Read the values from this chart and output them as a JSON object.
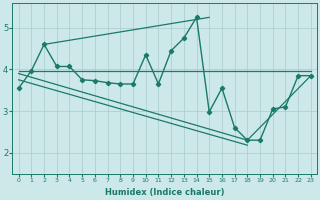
{
  "xlabel": "Humidex (Indice chaleur)",
  "bg_color": "#cce8e8",
  "grid_color": "#aacccc",
  "line_color": "#1a7a6a",
  "xlim": [
    -0.5,
    23.5
  ],
  "ylim": [
    1.5,
    5.6
  ],
  "yticks": [
    2,
    3,
    4,
    5
  ],
  "xticks": [
    0,
    1,
    2,
    3,
    4,
    5,
    6,
    7,
    8,
    9,
    10,
    11,
    12,
    13,
    14,
    15,
    16,
    17,
    18,
    19,
    20,
    21,
    22,
    23
  ],
  "main_series": {
    "x": [
      0,
      1,
      2,
      3,
      4,
      5,
      6,
      7,
      8,
      9,
      10,
      11,
      12,
      13,
      14,
      15,
      16,
      17,
      18,
      19,
      20,
      21,
      22,
      23
    ],
    "y": [
      3.55,
      3.97,
      4.6,
      4.07,
      4.07,
      3.75,
      3.73,
      3.68,
      3.65,
      3.65,
      4.35,
      3.65,
      4.45,
      4.75,
      5.25,
      2.98,
      3.55,
      2.6,
      2.3,
      2.3,
      3.05,
      3.1,
      3.85,
      3.85
    ]
  },
  "flat_line": {
    "x": [
      0,
      23
    ],
    "y": [
      3.95,
      3.95
    ]
  },
  "regression_line1": {
    "x": [
      0,
      18
    ],
    "y": [
      3.9,
      2.3
    ]
  },
  "regression_line2": {
    "x": [
      0,
      18
    ],
    "y": [
      3.75,
      2.18
    ]
  },
  "diagonal_line": {
    "x": [
      2,
      15
    ],
    "y": [
      4.6,
      5.25
    ]
  },
  "triangle_line": {
    "x": [
      18,
      23
    ],
    "y": [
      2.3,
      3.85
    ]
  }
}
